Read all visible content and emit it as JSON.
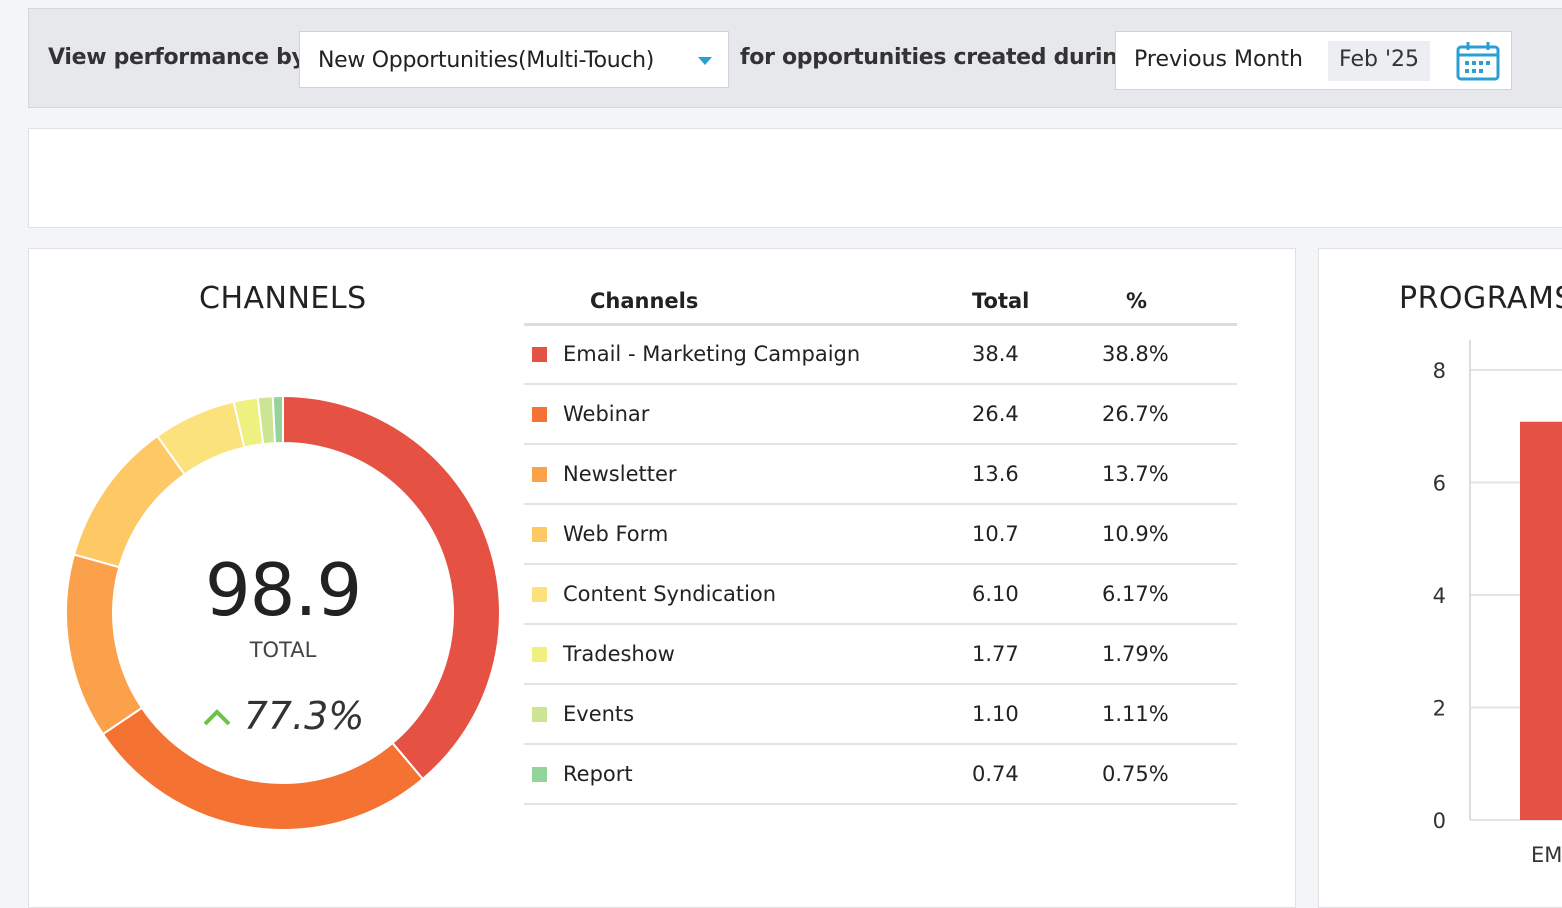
{
  "filter": {
    "view_label": "View performance by",
    "metric": "New Opportunities(Multi-Touch)",
    "during_label": "for opportunities created during",
    "period": "Previous Month",
    "month": "Feb '25"
  },
  "channels": {
    "title": "CHANNELS",
    "total": "98.9",
    "total_label": "TOTAL",
    "change": "77.3%",
    "change_color": "#6cc24a",
    "headers": [
      "Channels",
      "Total",
      "%"
    ],
    "rows": [
      {
        "name": "Email - Marketing Campaign",
        "total": "38.4",
        "pct": "38.8%",
        "color": "#e55244"
      },
      {
        "name": "Webinar",
        "total": "26.4",
        "pct": "26.7%",
        "color": "#f47232"
      },
      {
        "name": "Newsletter",
        "total": "13.6",
        "pct": "13.7%",
        "color": "#fba04b"
      },
      {
        "name": "Web Form",
        "total": "10.7",
        "pct": "10.9%",
        "color": "#fec965"
      },
      {
        "name": "Content Syndication",
        "total": "6.10",
        "pct": "6.17%",
        "color": "#fbe27c"
      },
      {
        "name": "Tradeshow",
        "total": "1.77",
        "pct": "1.79%",
        "color": "#eef07f"
      },
      {
        "name": "Events",
        "total": "1.10",
        "pct": "1.11%",
        "color": "#cce593"
      },
      {
        "name": "Report",
        "total": "0.74",
        "pct": "0.75%",
        "color": "#94d39a"
      }
    ]
  },
  "programs": {
    "title": "PROGRAMS",
    "chart_data": {
      "type": "bar",
      "categories": [
        "EM"
      ],
      "values": [
        7.08
      ],
      "yticks": [
        "0",
        "2",
        "4",
        "6",
        "8"
      ],
      "ylim": [
        0,
        8
      ],
      "color": "#e55244",
      "grid": true
    }
  }
}
